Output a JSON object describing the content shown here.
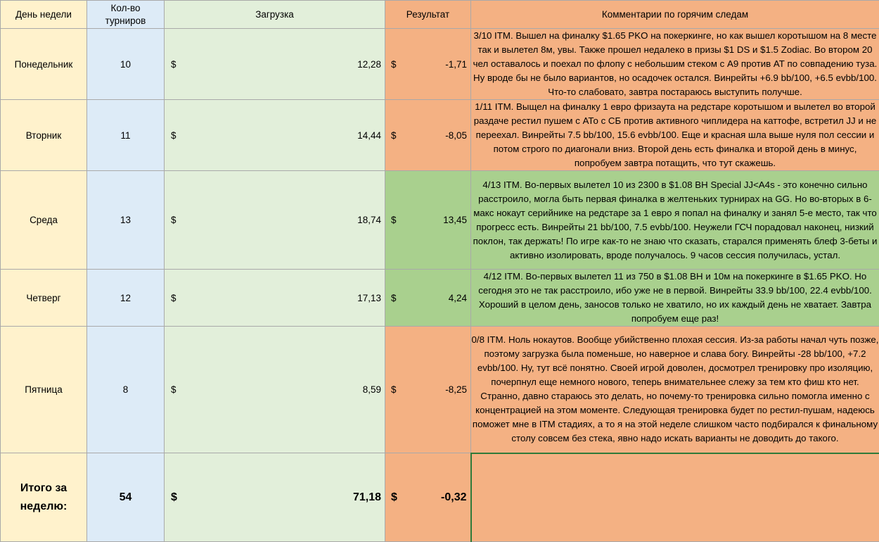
{
  "colors": {
    "day": "#fff2cc",
    "count": "#ddebf7",
    "load": "#e2efda",
    "negative": "#f4b183",
    "positive": "#a9d08e"
  },
  "headers": {
    "day": "День недели",
    "count": "Кол-во турниров",
    "load": "Загрузка",
    "result": "Результат",
    "comment": "Комментарии по горячим следам"
  },
  "rows": [
    {
      "day": "Понедельник",
      "count": "10",
      "load_currency": "$",
      "load": "12,28",
      "result_currency": "$",
      "result": "-1,71",
      "status": "negative",
      "comment": "3/10 ITM. Вышел на финалку $1.65 PKO на покеркинге, но как вышел коротышом на 8 месте так и вылетел 8м, увы. Также прошел недалеко в призы $1 DS и $1.5 Zodiac. Во втором 20 чел оставалось и поехал по флопу с небольшим стеком с А9 против АТ по совпадению туза. Ну вроде бы не было вариантов, но осадочек остался. Винрейты +6.9 bb/100, +6.5 evbb/100. Что-то слабовато, завтра постараюсь выступить получше."
    },
    {
      "day": "Вторник",
      "count": "11",
      "load_currency": "$",
      "load": "14,44",
      "result_currency": "$",
      "result": "-8,05",
      "status": "negative",
      "comment": "1/11 ITM. Выщел на финалку 1 евро фризаута на редстаре коротышом и вылетел во второй раздаче рестил пушем с АТо с СБ против активного чиплидера на каттофе, встретил JJ и не переехал. Винрейты 7.5 bb/100, 15.6 evbb/100. Еще и красная шла выше нуля пол сессии и потом строго по диагонали вниз. Второй день есть финалка и второй день в минус, попробуем завтра потащить, что тут скажешь."
    },
    {
      "day": "Среда",
      "count": "13",
      "load_currency": "$",
      "load": "18,74",
      "result_currency": "$",
      "result": "13,45",
      "status": "positive",
      "comment": "4/13 ITM. Во-первых вылетел 10 из 2300 в $1.08 BH Special JJ<A4s - это конечно сильно расстроило, могла быть первая финалка в желтеньких турнирах на GG. Но во-вторых в 6-макс нокаут серийнике на редстаре за 1 евро я попал на финалку и занял 5-е место, так что прогресс есть. Винрейты 21 bb/100, 7.5 evbb/100. Неужели ГСЧ порадовал наконец, низкий поклон, так держать! По игре как-то не знаю что сказать, старался применять блеф 3-беты и активно изолировать, вроде получалось. 9 часов сессия получилась, устал."
    },
    {
      "day": "Четверг",
      "count": "12",
      "load_currency": "$",
      "load": "17,13",
      "result_currency": "$",
      "result": "4,24",
      "status": "positive",
      "comment": "4/12 ITM. Во-первых вылетел 11 из 750 в $1.08 BH и 10м на покеркинге в $1.65 PKO. Но сегодня это не так расстроило, ибо уже не в первой. Винрейты 33.9 bb/100, 22.4 evbb/100. Хороший в целом день, заносов только не хватило, но их каждый день не хватает. Завтра попробуем еще раз!"
    },
    {
      "day": "Пятница",
      "count": "8",
      "load_currency": "$",
      "load": "8,59",
      "result_currency": "$",
      "result": "-8,25",
      "status": "negative",
      "comment": "0/8 ITM. Ноль нокаутов. Вообще убийственно плохая сессия. Из-за работы начал чуть позже, поэтому загрузка была поменьше, но наверное и слава богу. Винрейты -28 bb/100, +7.2 evbb/100. Ну, тут всё понятно. Своей игрой доволен, досмотрел тренировку про изоляцию, почерпнул еще немного нового, теперь внимательнее слежу за тем кто фиш кто нет. Странно, давно стараюсь это делать, но почему-то тренировка сильно помогла именно с концентрацией на этом моменте. Следующая тренировка будет по рестил-пушам, надеюсь поможет мне в ITM стадиях, а то я на этой неделе слишком часто подбирался к финальному столу совсем без стека, явно надо искать варианты не доводить до такого."
    }
  ],
  "total": {
    "label_line1": "Итого за",
    "label_line2": "неделю:",
    "count": "54",
    "load_currency": "$",
    "load": "71,18",
    "result_currency": "$",
    "result": "-0,32",
    "comment": ""
  }
}
